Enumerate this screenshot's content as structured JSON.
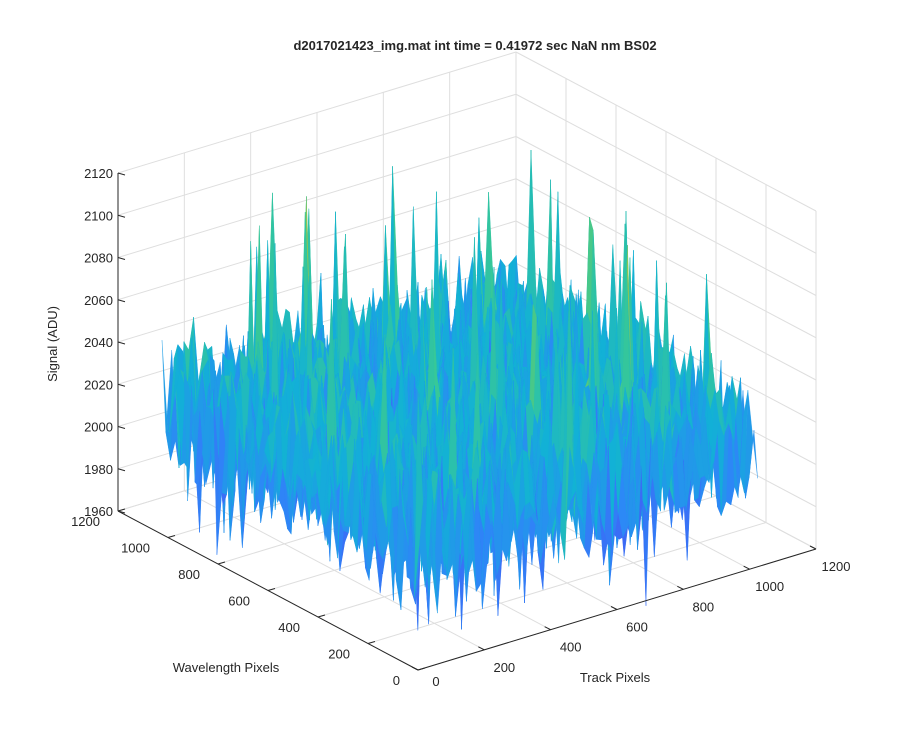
{
  "chart_data": {
    "type": "surface",
    "title": "d2017021423_img.mat int time = 0.41972 sec  NaN nm BS02",
    "xlabel": "Track Pixels",
    "ylabel": "Wavelength Pixels",
    "zlabel": "Signal (ADU)",
    "xlim": [
      0,
      1200
    ],
    "ylim": [
      0,
      1200
    ],
    "zlim": [
      1960,
      2120
    ],
    "x_ticks": [
      "0",
      "200",
      "400",
      "600",
      "800",
      "1000",
      "1200"
    ],
    "y_ticks": [
      "0",
      "200",
      "400",
      "600",
      "800",
      "1000",
      "1200"
    ],
    "z_ticks": [
      "1960",
      "1980",
      "2000",
      "2020",
      "2040",
      "2060",
      "2080",
      "2100",
      "2120"
    ],
    "grid": true,
    "surface": {
      "extent_x": [
        0,
        1024
      ],
      "extent_y": [
        0,
        1024
      ],
      "mean": 2020,
      "noise_range": [
        1985,
        2055
      ],
      "max": 2110,
      "min": 1955,
      "colormap": "parula"
    }
  }
}
